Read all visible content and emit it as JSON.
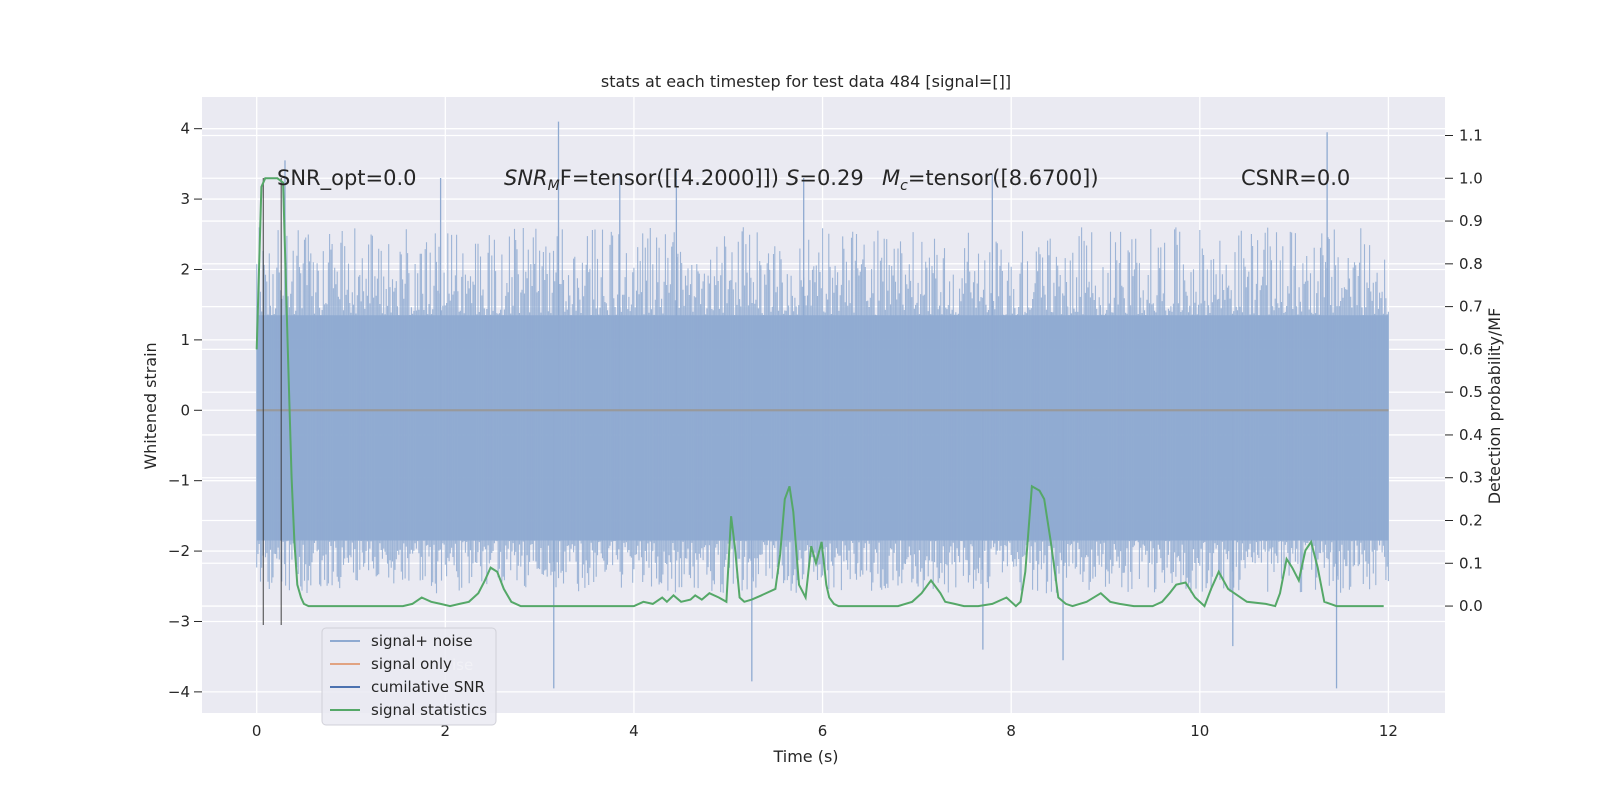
{
  "chart_data": {
    "type": "line",
    "title": "stats at each timestep for test data 484 [signal=[]]",
    "xlabel": "Time (s)",
    "ylabel": "Whitened strain",
    "ylabel_right": "Detection probability/MF",
    "xlim": [
      -0.58,
      12.6
    ],
    "ylim": [
      -4.3,
      4.45
    ],
    "ylim_right": [
      -0.25,
      1.19
    ],
    "xticks": [
      0,
      2,
      4,
      6,
      8,
      10,
      12
    ],
    "yticks": [
      -4,
      -3,
      -2,
      -1,
      0,
      1,
      2,
      3,
      4
    ],
    "yticks_right": [
      0.0,
      0.1,
      0.2,
      0.3,
      0.4,
      0.5,
      0.6,
      0.7,
      0.8,
      0.9,
      1.0,
      1.1
    ],
    "xtick_labels": [
      "0",
      "2",
      "4",
      "6",
      "8",
      "10",
      "12"
    ],
    "ytick_labels": [
      "−4",
      "−3",
      "−2",
      "−1",
      "0",
      "1",
      "2",
      "3",
      "4"
    ],
    "ytick_labels_right": [
      "0.0",
      "0.1",
      "0.2",
      "0.3",
      "0.4",
      "0.5",
      "0.6",
      "0.7",
      "0.8",
      "0.9",
      "1.0",
      "1.1"
    ],
    "annotations": {
      "snr_opt": "SNR_opt=0.0",
      "snr_mf_sym": "SNR",
      "snr_mf_sub": "M",
      "snr_mf_tail": "F=tensor([[4.2000]])",
      "s_sym": "S",
      "s_val": "=0.29",
      "mc_sym": "M",
      "mc_sub": "c",
      "mc_val": "=tensor([8.6700])",
      "csnr": "CSNR=0.0"
    },
    "vlines_x": [
      0.07,
      0.26
    ],
    "vlines_ymin": -3.05,
    "vlines_ymax": 3.3,
    "series": [
      {
        "name": "signal+ noise",
        "axis": "left",
        "color": "#8faad1",
        "x_range": [
          0,
          12
        ],
        "core_band": [
          -1.85,
          1.35
        ],
        "envelope": [
          -2.6,
          2.6
        ],
        "outlier_peaks": [
          {
            "x": 0.3,
            "y": 3.55
          },
          {
            "x": 1.95,
            "y": 3.3
          },
          {
            "x": 3.2,
            "y": 4.1
          },
          {
            "x": 3.85,
            "y": 3.35
          },
          {
            "x": 4.45,
            "y": 3.4
          },
          {
            "x": 5.8,
            "y": 3.3
          },
          {
            "x": 7.8,
            "y": 3.35
          },
          {
            "x": 11.35,
            "y": 3.95
          }
        ],
        "outlier_troughs": [
          {
            "x": 3.15,
            "y": -3.95
          },
          {
            "x": 5.25,
            "y": -3.85
          },
          {
            "x": 8.55,
            "y": -3.55
          },
          {
            "x": 7.7,
            "y": -3.4
          },
          {
            "x": 11.45,
            "y": -3.95
          },
          {
            "x": 10.35,
            "y": -3.35
          }
        ]
      },
      {
        "name": "signal only",
        "axis": "left",
        "color": "#dd8452",
        "x": [
          0,
          12
        ],
        "y": [
          0,
          0
        ]
      },
      {
        "name": "cumilative SNR",
        "axis": "left",
        "color": "#4c72b0",
        "x": [
          0,
          12
        ],
        "y": [
          0,
          0
        ]
      },
      {
        "name": "signal statistics",
        "axis": "right",
        "color": "#55a868",
        "x": [
          0.0,
          0.05,
          0.09,
          0.15,
          0.22,
          0.28,
          0.33,
          0.37,
          0.4,
          0.43,
          0.47,
          0.5,
          0.55,
          0.65,
          0.8,
          1.0,
          1.3,
          1.55,
          1.65,
          1.75,
          1.85,
          1.95,
          2.05,
          2.15,
          2.25,
          2.35,
          2.42,
          2.48,
          2.55,
          2.62,
          2.7,
          2.8,
          3.0,
          3.2,
          3.3,
          3.5,
          3.8,
          4.0,
          4.1,
          4.2,
          4.3,
          4.35,
          4.42,
          4.5,
          4.6,
          4.65,
          4.72,
          4.8,
          4.9,
          4.98,
          5.03,
          5.07,
          5.12,
          5.17,
          5.25,
          5.35,
          5.5,
          5.55,
          5.6,
          5.65,
          5.69,
          5.75,
          5.82,
          5.88,
          5.93,
          5.99,
          6.04,
          6.07,
          6.12,
          6.17,
          6.25,
          6.4,
          6.6,
          6.8,
          6.95,
          7.05,
          7.15,
          7.25,
          7.3,
          7.4,
          7.5,
          7.6,
          7.65,
          7.8,
          7.95,
          8.05,
          8.1,
          8.15,
          8.22,
          8.3,
          8.35,
          8.42,
          8.5,
          8.58,
          8.65,
          8.8,
          8.95,
          9.05,
          9.15,
          9.3,
          9.5,
          9.6,
          9.68,
          9.75,
          9.85,
          9.95,
          10.05,
          10.12,
          10.2,
          10.3,
          10.5,
          10.7,
          10.8,
          10.85,
          10.92,
          10.98,
          11.05,
          11.12,
          11.18,
          11.25,
          11.32,
          11.45,
          11.7,
          11.95
        ],
        "y": [
          0.6,
          0.98,
          1.0,
          1.0,
          1.0,
          0.99,
          0.6,
          0.3,
          0.15,
          0.05,
          0.02,
          0.005,
          0.0,
          0.0,
          0.0,
          0.0,
          0.0,
          0.0,
          0.005,
          0.02,
          0.01,
          0.005,
          0.0,
          0.005,
          0.01,
          0.03,
          0.06,
          0.09,
          0.08,
          0.04,
          0.01,
          0.0,
          0.0,
          0.0,
          0.0,
          0.0,
          0.0,
          0.0,
          0.01,
          0.005,
          0.02,
          0.01,
          0.025,
          0.01,
          0.015,
          0.025,
          0.015,
          0.03,
          0.02,
          0.01,
          0.21,
          0.14,
          0.02,
          0.01,
          0.015,
          0.025,
          0.04,
          0.12,
          0.25,
          0.28,
          0.22,
          0.05,
          0.02,
          0.14,
          0.1,
          0.15,
          0.05,
          0.02,
          0.005,
          0.0,
          0.0,
          0.0,
          0.0,
          0.0,
          0.01,
          0.03,
          0.06,
          0.03,
          0.01,
          0.005,
          0.0,
          0.0,
          0.0,
          0.005,
          0.02,
          0.0,
          0.01,
          0.08,
          0.28,
          0.27,
          0.25,
          0.15,
          0.02,
          0.005,
          0.0,
          0.01,
          0.03,
          0.01,
          0.005,
          0.0,
          0.0,
          0.01,
          0.03,
          0.05,
          0.055,
          0.02,
          0.0,
          0.04,
          0.08,
          0.04,
          0.01,
          0.005,
          0.0,
          0.03,
          0.11,
          0.09,
          0.06,
          0.13,
          0.15,
          0.09,
          0.01,
          0.0,
          0.0,
          0.0
        ]
      }
    ],
    "legend": {
      "placement": "lower-left",
      "entries": [
        "signal+ noise",
        "signal only",
        "cumilative SNR",
        "signal statistics"
      ],
      "ghost_text": [
        "ise",
        "",
        "",
        ""
      ]
    }
  }
}
